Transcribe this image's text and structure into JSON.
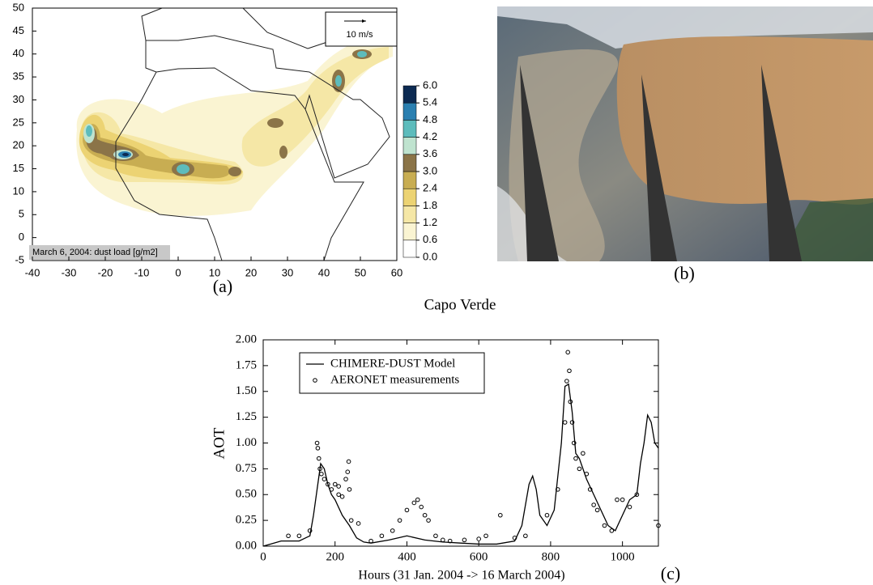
{
  "chart_data": [
    {
      "type": "map",
      "label": "(a)",
      "annotation": "March 6, 2004: dust load [g/m2]",
      "vector_key": "10 m/s",
      "xlim": [
        -40,
        60
      ],
      "ylim": [
        -5,
        50
      ],
      "xticks": [
        -40,
        -30,
        -20,
        -10,
        0,
        10,
        20,
        30,
        40,
        50,
        60
      ],
      "yticks": [
        -5,
        0,
        5,
        10,
        15,
        20,
        25,
        30,
        35,
        40,
        45,
        50
      ],
      "colorbar": {
        "ticks": [
          {
            "value": 0,
            "label": "0.0"
          },
          {
            "value": 0.6,
            "label": "0.6"
          },
          {
            "value": 1.2,
            "label": "1.2"
          },
          {
            "value": 1.8,
            "label": "1.8"
          },
          {
            "value": 2.4,
            "label": "2.4"
          },
          {
            "value": 3.0,
            "label": "3.0"
          },
          {
            "value": 3.6,
            "label": "3.6"
          },
          {
            "value": 4.2,
            "label": "4.2"
          },
          {
            "value": 4.8,
            "label": "4.8"
          },
          {
            "value": 5.4,
            "label": "5.4"
          },
          {
            "value": 6.0,
            "label": "6.0"
          }
        ],
        "colors": [
          "#ffffff",
          "#faf4d2",
          "#f5e7a6",
          "#ecd373",
          "#c8ad52",
          "#8b7448",
          "#bfe3cf",
          "#5dbcbc",
          "#2a7fb0",
          "#0c2a52"
        ]
      }
    },
    {
      "type": "line",
      "title": "Capo Verde",
      "label": "(c)",
      "x_label": "Hours (31 Jan. 2004 -> 16 March 2004)",
      "y_label": "AOT",
      "xlim": [
        0,
        1100
      ],
      "ylim": [
        0,
        2
      ],
      "xticks": [
        0,
        200,
        400,
        600,
        800,
        1000
      ],
      "yticks": [
        {
          "value": 0,
          "label": "0.00"
        },
        {
          "value": 0.25,
          "label": "0.25"
        },
        {
          "value": 0.5,
          "label": "0.50"
        },
        {
          "value": 0.75,
          "label": "0.75"
        },
        {
          "value": 1,
          "label": "1.00"
        },
        {
          "value": 1.25,
          "label": "1.25"
        },
        {
          "value": 1.5,
          "label": "1.50"
        },
        {
          "value": 1.75,
          "label": "1.75"
        },
        {
          "value": 2,
          "label": "2.00"
        }
      ],
      "legend": "upper left",
      "series": [
        {
          "name": "CHIMERE-DUST Model",
          "style": "line",
          "color": "#000000",
          "x": [
            0,
            20,
            50,
            100,
            130,
            140,
            150,
            160,
            170,
            180,
            190,
            200,
            220,
            240,
            260,
            280,
            300,
            350,
            400,
            450,
            500,
            550,
            600,
            650,
            700,
            720,
            740,
            750,
            760,
            770,
            790,
            810,
            830,
            840,
            850,
            860,
            870,
            880,
            890,
            900,
            920,
            940,
            960,
            980,
            1000,
            1020,
            1040,
            1050,
            1060,
            1070,
            1080,
            1090,
            1100
          ],
          "values": [
            0,
            0.02,
            0.05,
            0.05,
            0.1,
            0.3,
            0.55,
            0.8,
            0.75,
            0.6,
            0.5,
            0.45,
            0.3,
            0.2,
            0.08,
            0.04,
            0.03,
            0.06,
            0.1,
            0.06,
            0.04,
            0.03,
            0.02,
            0.02,
            0.05,
            0.2,
            0.6,
            0.68,
            0.55,
            0.3,
            0.2,
            0.35,
            1.0,
            1.55,
            1.57,
            1.3,
            0.9,
            0.85,
            0.75,
            0.65,
            0.5,
            0.35,
            0.2,
            0.15,
            0.3,
            0.45,
            0.5,
            0.8,
            1.0,
            1.27,
            1.2,
            1.0,
            0.95
          ]
        },
        {
          "name": "AERONET measurements",
          "style": "markers",
          "color": "#000000",
          "x": [
            70,
            100,
            130,
            150,
            152,
            155,
            158,
            162,
            170,
            180,
            190,
            200,
            210,
            210,
            220,
            230,
            235,
            238,
            240,
            245,
            265,
            300,
            330,
            360,
            380,
            400,
            420,
            430,
            440,
            450,
            460,
            480,
            500,
            520,
            560,
            600,
            620,
            660,
            700,
            730,
            790,
            820,
            840,
            845,
            848,
            852,
            855,
            860,
            865,
            870,
            880,
            890,
            900,
            910,
            920,
            930,
            950,
            970,
            985,
            1000,
            1020,
            1040,
            1100
          ],
          "values": [
            0.1,
            0.1,
            0.15,
            1.0,
            0.95,
            0.85,
            0.75,
            0.7,
            0.65,
            0.6,
            0.55,
            0.6,
            0.5,
            0.58,
            0.48,
            0.65,
            0.72,
            0.82,
            0.55,
            0.25,
            0.22,
            0.05,
            0.1,
            0.15,
            0.25,
            0.35,
            0.42,
            0.45,
            0.38,
            0.3,
            0.25,
            0.1,
            0.06,
            0.05,
            0.06,
            0.07,
            0.1,
            0.3,
            0.08,
            0.1,
            0.3,
            0.55,
            1.2,
            1.6,
            1.88,
            1.7,
            1.4,
            1.2,
            1.0,
            0.85,
            0.75,
            0.9,
            0.7,
            0.55,
            0.4,
            0.35,
            0.2,
            0.15,
            0.45,
            0.45,
            0.38,
            0.5,
            0.2
          ]
        }
      ]
    }
  ],
  "image_panel": {
    "label": "(b)"
  }
}
